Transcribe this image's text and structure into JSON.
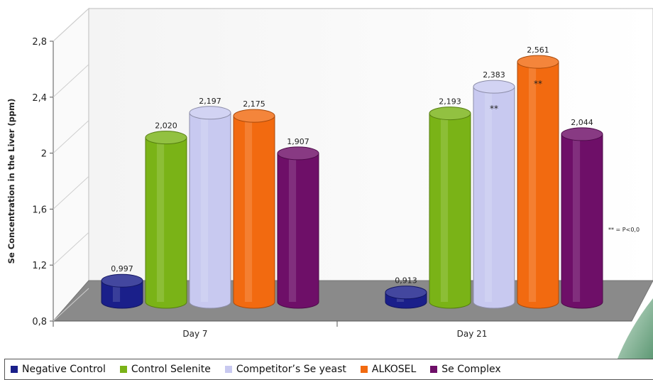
{
  "chart_data": {
    "type": "bar",
    "ylabel": "Se Concentration in the Liver (ppm)",
    "ylim": [
      0.8,
      2.8
    ],
    "yticks": [
      "0,8",
      "1,2",
      "1,6",
      "2",
      "2,4",
      "2,8"
    ],
    "ytick_values": [
      0.8,
      1.2,
      1.6,
      2.0,
      2.4,
      2.8
    ],
    "categories": [
      "Day 7",
      "Day 21"
    ],
    "series": [
      {
        "name": "Negative Control",
        "color": "#1a1f8a",
        "values": [
          0.997,
          0.913
        ],
        "labels": [
          "0,997",
          "0,913"
        ]
      },
      {
        "name": "Control Selenite",
        "color": "#7ab317",
        "values": [
          2.02,
          2.193
        ],
        "labels": [
          "2,020",
          "2,193"
        ]
      },
      {
        "name": "Competitor’s Se yeast",
        "color": "#c8c9f0",
        "values": [
          2.197,
          2.383
        ],
        "labels": [
          "2,197",
          "2,383"
        ]
      },
      {
        "name": "ALKOSEL",
        "color": "#f26a10",
        "values": [
          2.175,
          2.561
        ],
        "labels": [
          "2,175",
          "2,561"
        ]
      },
      {
        "name": "Se Complex",
        "color": "#6e0f68",
        "values": [
          1.907,
          2.044
        ],
        "labels": [
          "1,907",
          "2,044"
        ]
      }
    ],
    "significance_marks": [
      {
        "category": "Day 21",
        "series": "Competitor’s Se yeast",
        "text": "**"
      },
      {
        "category": "Day 21",
        "series": "ALKOSEL",
        "text": "**"
      }
    ],
    "footnote": "** = P<0,0",
    "grid": false,
    "legend_position": "bottom"
  }
}
